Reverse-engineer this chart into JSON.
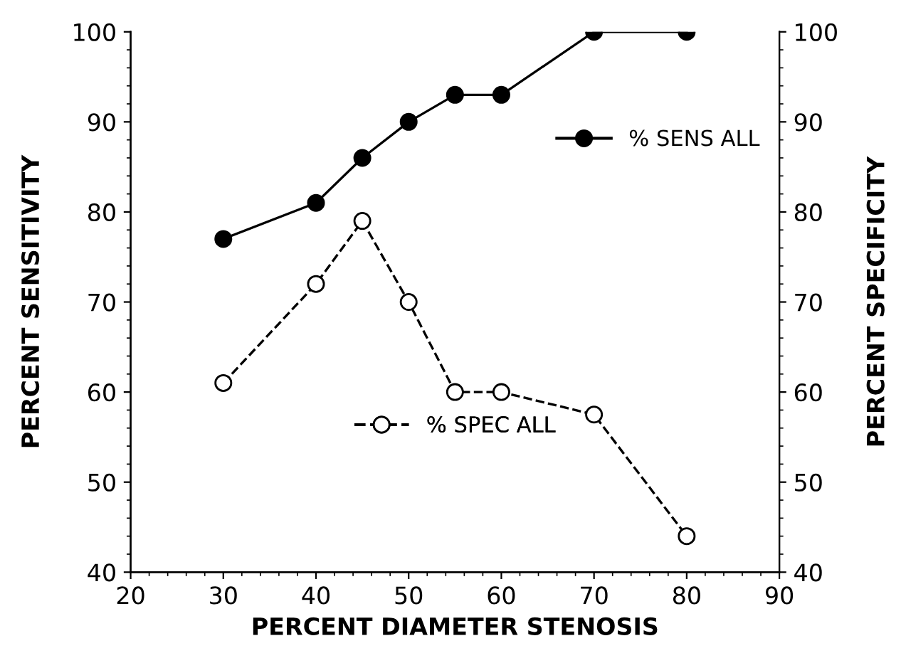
{
  "chart_data": {
    "type": "line",
    "xlabel": "PERCENT DIAMETER STENOSIS",
    "ylabel": "PERCENT SENSITIVITY",
    "y2label": "PERCENT SPECIFICITY",
    "x": [
      30,
      40,
      45,
      50,
      55,
      60,
      70,
      80
    ],
    "series": [
      {
        "name": "% SENS ALL",
        "color": "#000000",
        "values": [
          77,
          81,
          86,
          90,
          93,
          93,
          100,
          100
        ],
        "marker": "circle",
        "line_style": "solid"
      },
      {
        "name": "% SPEC ALL",
        "color": "#000000",
        "values": [
          61,
          72,
          79,
          70,
          60,
          60,
          57.5,
          44
        ],
        "marker": "circle",
        "line_style": "dashed",
        "axis": "y2"
      }
    ],
    "xlim": [
      20,
      90
    ],
    "xticks": [
      20,
      30,
      40,
      50,
      60,
      70,
      80,
      90
    ],
    "ylim": [
      40,
      100
    ],
    "yticks": [
      40,
      50,
      60,
      70,
      80,
      90,
      100
    ],
    "y2lim": [
      40,
      100
    ],
    "y2ticks": [
      40,
      50,
      60,
      70,
      80,
      90,
      100
    ],
    "legend": "right",
    "grid": false
  }
}
